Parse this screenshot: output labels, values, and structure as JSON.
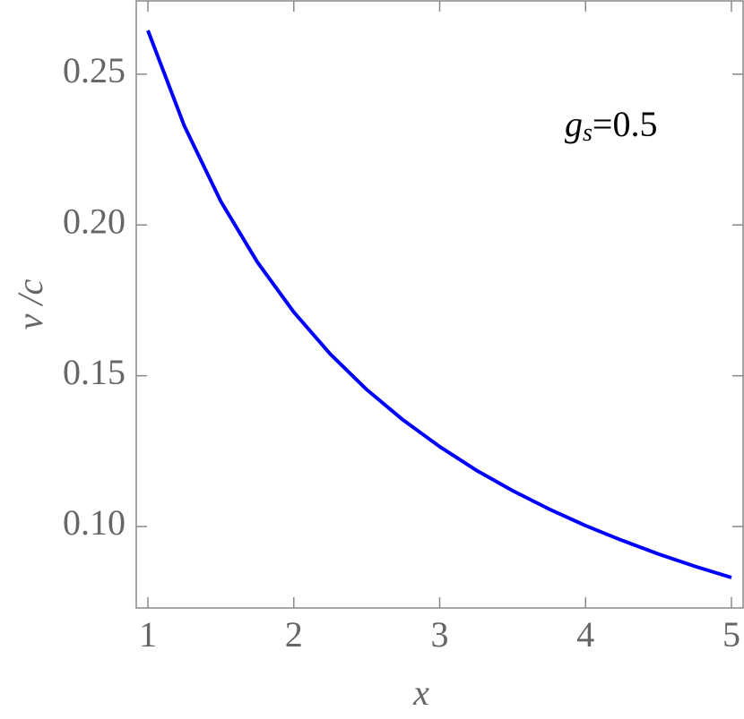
{
  "chart_data": {
    "type": "line",
    "x_label": "x",
    "y_label": "v /c",
    "annotation": {
      "symbol": "g",
      "subscript": "s",
      "text": "=0.5"
    },
    "x": [
      1,
      1.25,
      1.5,
      1.75,
      2,
      2.25,
      2.5,
      2.75,
      3,
      3.25,
      3.5,
      3.75,
      4,
      4.25,
      4.5,
      4.75,
      5
    ],
    "series": [
      {
        "color": "#0000ff",
        "values": [
          0.2645,
          0.2328,
          0.2078,
          0.1877,
          0.1711,
          0.1572,
          0.1454,
          0.1353,
          0.1265,
          0.1187,
          0.1119,
          0.1058,
          0.1003,
          0.0954,
          0.0909,
          0.0868,
          0.0831
        ]
      }
    ],
    "xlim": [
      0.92,
      5.08
    ],
    "ylim": [
      0.073,
      0.2743
    ],
    "xticks": [
      1,
      2,
      3,
      4,
      5
    ],
    "yticks": [
      {
        "value": 0.1,
        "label": "0.10"
      },
      0.15,
      {
        "value": 0.2,
        "label": "0.20"
      },
      0.25
    ]
  }
}
